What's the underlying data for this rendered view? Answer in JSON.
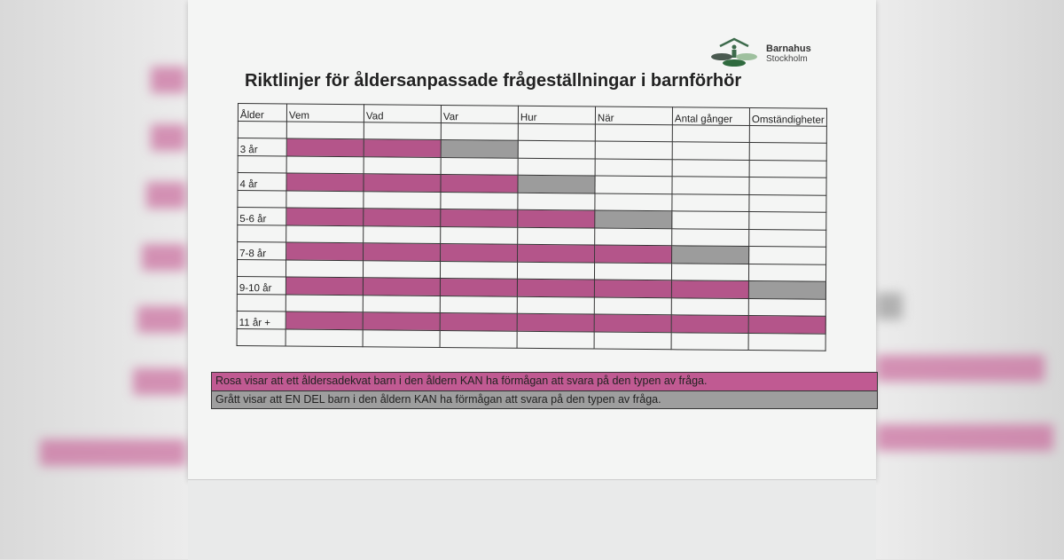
{
  "logo": {
    "name": "Barnahus",
    "city": "Stockholm"
  },
  "title": "Riktlinjer för åldersanpassade frågeställningar i barnförhör",
  "colors": {
    "pink": "#b4558a",
    "grey": "#9c9c9c"
  },
  "table": {
    "headers": [
      "Ålder",
      "Vem",
      "Vad",
      "Var",
      "Hur",
      "När",
      "Antal gånger",
      "Omständigheter"
    ],
    "rows": [
      {
        "age": "3 år",
        "cells": [
          "pink",
          "pink",
          "grey",
          "",
          "",
          "",
          ""
        ]
      },
      {
        "age": "4 år",
        "cells": [
          "pink",
          "pink",
          "pink",
          "grey",
          "",
          "",
          ""
        ]
      },
      {
        "age": "5-6 år",
        "cells": [
          "pink",
          "pink",
          "pink",
          "pink",
          "grey",
          "",
          ""
        ]
      },
      {
        "age": "7-8 år",
        "cells": [
          "pink",
          "pink",
          "pink",
          "pink",
          "pink",
          "grey",
          ""
        ]
      },
      {
        "age": "9-10 år",
        "cells": [
          "pink",
          "pink",
          "pink",
          "pink",
          "pink",
          "pink",
          "grey"
        ]
      },
      {
        "age": "11 år +",
        "cells": [
          "pink",
          "pink",
          "pink",
          "pink",
          "pink",
          "pink",
          "pink"
        ]
      }
    ]
  },
  "legend": {
    "pink": "Rosa visar att ett åldersadekvat barn i den åldern KAN ha förmågan att svara på den typen av fråga.",
    "grey": "Grått visar att EN DEL barn i den åldern KAN ha förmågan att svara på den typen av fråga."
  }
}
